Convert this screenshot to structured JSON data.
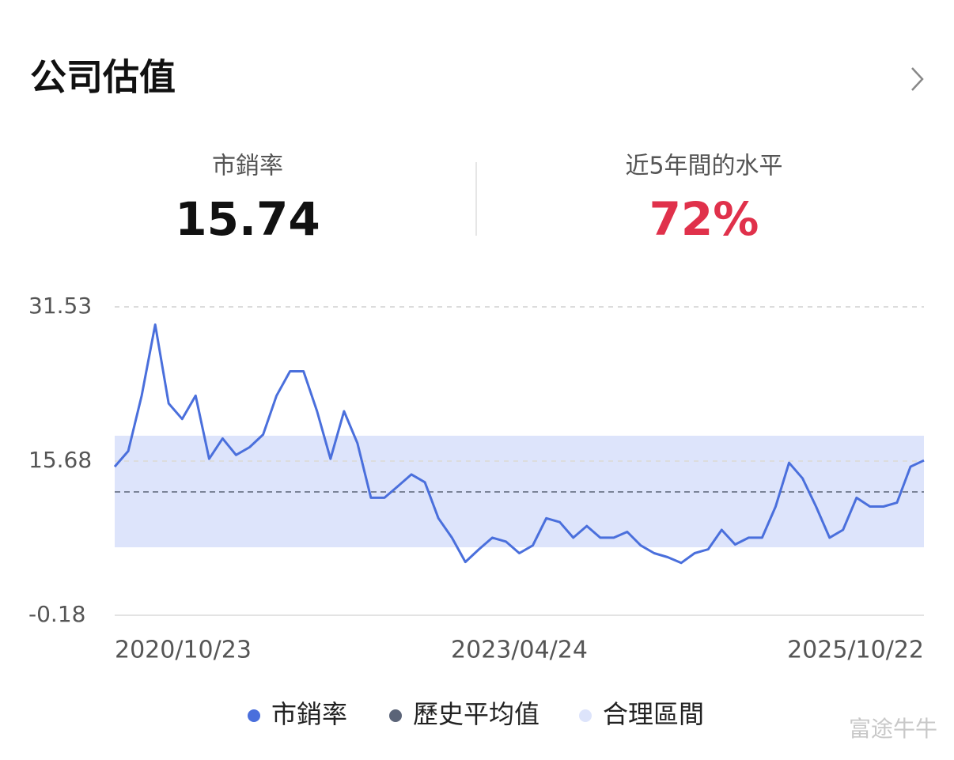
{
  "header": {
    "title": "公司估值"
  },
  "stats": [
    {
      "label": "市銷率",
      "value": "15.74"
    },
    {
      "label": "近5年間的水平",
      "value": "72%"
    }
  ],
  "chart_data": {
    "type": "line",
    "categories": [
      "2020/10/23",
      null,
      null,
      null,
      null,
      null,
      null,
      null,
      null,
      null,
      null,
      null,
      null,
      null,
      null,
      null,
      null,
      null,
      null,
      null,
      null,
      null,
      null,
      null,
      null,
      null,
      null,
      null,
      null,
      null,
      "2023/04/24",
      null,
      null,
      null,
      null,
      null,
      null,
      null,
      null,
      null,
      null,
      null,
      null,
      null,
      null,
      null,
      null,
      null,
      null,
      null,
      null,
      null,
      null,
      null,
      null,
      null,
      null,
      null,
      null,
      null,
      "2025/10/22"
    ],
    "series": [
      {
        "name": "市銷率",
        "color": "#4a6fdc",
        "values": [
          15.1,
          16.7,
          22.4,
          29.7,
          21.6,
          20.0,
          22.4,
          15.9,
          18.0,
          16.3,
          17.1,
          18.4,
          22.4,
          24.9,
          24.9,
          20.8,
          15.9,
          20.8,
          17.5,
          11.9,
          11.9,
          13.1,
          14.3,
          13.5,
          9.8,
          7.8,
          5.3,
          6.6,
          7.8,
          7.4,
          6.2,
          7.0,
          9.8,
          9.4,
          7.8,
          9.0,
          7.8,
          7.8,
          8.4,
          7.0,
          6.2,
          5.8,
          5.2,
          6.2,
          6.6,
          8.6,
          7.1,
          7.8,
          7.8,
          11.0,
          15.5,
          13.9,
          11.0,
          7.8,
          8.6,
          11.9,
          11.0,
          11.0,
          11.4,
          15.1,
          15.74
        ]
      }
    ],
    "mean": {
      "name": "歷史平均值",
      "color": "#5b6478",
      "value": 12.5
    },
    "band": {
      "name": "合理區間",
      "color": "#dde4fb",
      "range": [
        6.81,
        18.28
      ]
    },
    "ylim": [
      -0.18,
      31.53
    ],
    "yticks": [
      31.53,
      15.68,
      -0.18
    ],
    "grid": true
  },
  "watermark": "富途牛牛"
}
